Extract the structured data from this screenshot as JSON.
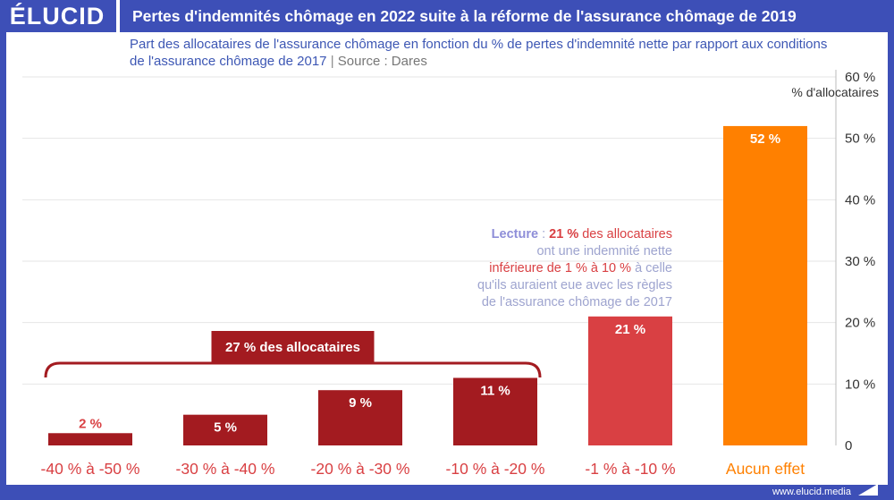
{
  "brand": {
    "logo": "ÉLUCID",
    "url": "www.elucid.media"
  },
  "colors": {
    "frame": "#3d4fb7",
    "bar_dark_red": "#a31b20",
    "bar_red": "#d94043",
    "bar_orange": "#ff8000",
    "subtitle": "#3d57b4",
    "lecture_gray": "#9ea4cf",
    "lecture_red": "#d94043",
    "lecture_label": "#8e8ed8"
  },
  "chart_data": {
    "type": "bar",
    "title": "Pertes d'indemnités chômage en 2022 suite à la réforme de l'assurance chômage de 2019",
    "subtitle": "Part des allocataires de l'assurance chômage en fonction du % de pertes d'indemnité nette par rapport aux conditions de l'assurance chômage de 2017",
    "source_sep": "|",
    "source": "Source : Dares",
    "ylabel": "% d'allocataires",
    "ylim": [
      0,
      60
    ],
    "yticks": [
      0,
      10,
      20,
      30,
      40,
      50,
      60
    ],
    "ytick_labels": [
      "0",
      "10 %",
      "20 %",
      "30 %",
      "40 %",
      "50 %",
      "60 %"
    ],
    "y_axis_position": "right",
    "grid": true,
    "categories": [
      "-40 % à -50 %",
      "-30 % à -40 %",
      "-20 % à -30 %",
      "-10 % à -20 %",
      "-1 % à -10 %",
      "Aucun effet"
    ],
    "values": [
      2,
      5,
      9,
      11,
      21,
      52
    ],
    "value_labels": [
      "2 %",
      "5 %",
      "9 %",
      "11 %",
      "21 %",
      "52 %"
    ],
    "bar_colors": [
      "#a31b20",
      "#a31b20",
      "#a31b20",
      "#a31b20",
      "#d94043",
      "#ff8000"
    ],
    "label_colors": [
      "#d94043",
      "#d94043",
      "#d94043",
      "#d94043",
      "#d94043",
      "#ff8000"
    ],
    "group_annotation": {
      "label": "27 % des allocataires",
      "covers_categories": [
        0,
        1,
        2,
        3
      ]
    },
    "lecture": {
      "lines": [
        [
          {
            "text": "Lecture",
            "style": "label"
          },
          {
            "text": " : ",
            "style": "gray"
          },
          {
            "text": "21 %",
            "style": "red-bold"
          },
          {
            "text": " des allocataires",
            "style": "red"
          }
        ],
        [
          {
            "text": "ont une indemnité nette",
            "style": "gray"
          }
        ],
        [
          {
            "text": "inférieure de 1 % à 10 %",
            "style": "red"
          },
          {
            "text": " à celle",
            "style": "gray"
          }
        ],
        [
          {
            "text": "qu'ils auraient eue avec les règles",
            "style": "gray"
          }
        ],
        [
          {
            "text": "de l'assurance chômage de 2017",
            "style": "gray"
          }
        ]
      ]
    }
  }
}
